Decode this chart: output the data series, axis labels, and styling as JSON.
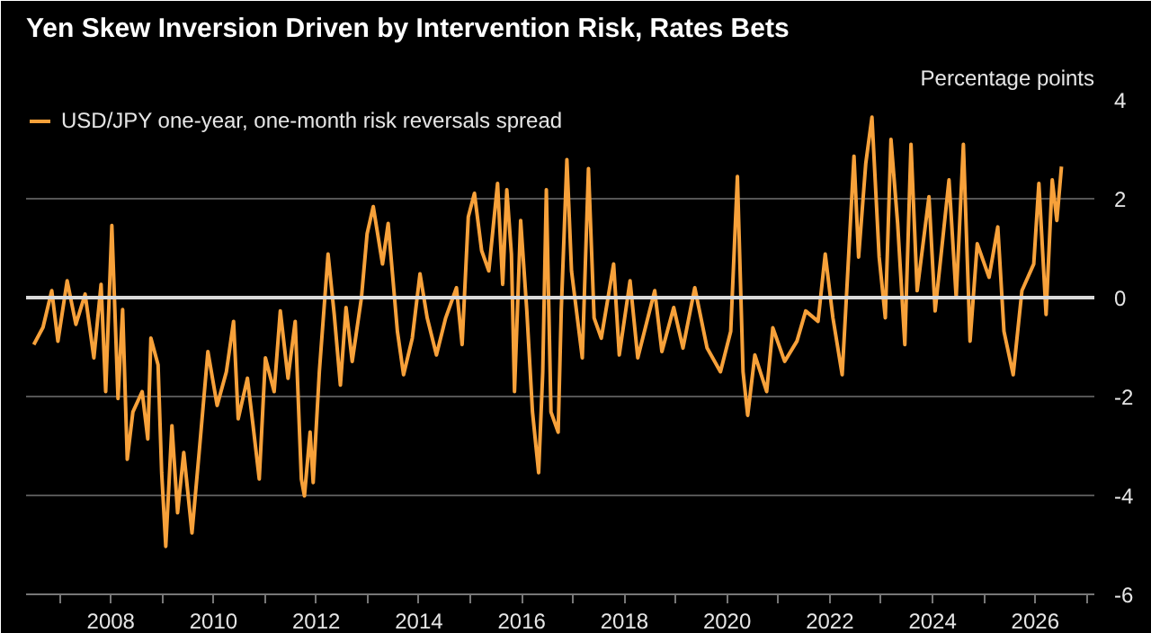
{
  "chart_data": {
    "type": "line",
    "title": "Yen Skew Inversion Driven by Intervention Risk, Rates Bets",
    "ylabel": "Percentage points",
    "x": [
      2006.5,
      2006.68,
      2006.85,
      2006.97,
      2007.15,
      2007.32,
      2007.5,
      2007.67,
      2007.81,
      2007.9,
      2008.02,
      2008.14,
      2008.23,
      2008.32,
      2008.43,
      2008.61,
      2008.72,
      2008.78,
      2008.92,
      2008.99,
      2009.07,
      2009.19,
      2009.3,
      2009.42,
      2009.58,
      2009.72,
      2009.89,
      2010.07,
      2010.25,
      2010.39,
      2010.48,
      2010.66,
      2010.77,
      2010.89,
      2011.01,
      2011.18,
      2011.3,
      2011.45,
      2011.59,
      2011.71,
      2011.77,
      2011.88,
      2011.94,
      2012.06,
      2012.23,
      2012.35,
      2012.47,
      2012.58,
      2012.7,
      2012.88,
      2012.99,
      2013.11,
      2013.29,
      2013.4,
      2013.58,
      2013.7,
      2013.87,
      2014.02,
      2014.16,
      2014.34,
      2014.52,
      2014.73,
      2014.84,
      2014.96,
      2015.08,
      2015.22,
      2015.36,
      2015.53,
      2015.63,
      2015.71,
      2015.8,
      2015.86,
      2015.98,
      2016.1,
      2016.21,
      2016.33,
      2016.41,
      2016.48,
      2016.57,
      2016.71,
      2016.77,
      2016.88,
      2016.97,
      2017.18,
      2017.3,
      2017.41,
      2017.55,
      2017.79,
      2017.9,
      2018.11,
      2018.26,
      2018.59,
      2018.73,
      2018.96,
      2019.14,
      2019.37,
      2019.61,
      2019.87,
      2020.07,
      2020.2,
      2020.31,
      2020.4,
      2020.54,
      2020.77,
      2020.89,
      2021.12,
      2021.36,
      2021.53,
      2021.77,
      2021.91,
      2022.06,
      2022.24,
      2022.35,
      2022.47,
      2022.56,
      2022.7,
      2022.82,
      2022.96,
      2023.08,
      2023.19,
      2023.32,
      2023.46,
      2023.58,
      2023.7,
      2023.93,
      2024.05,
      2024.32,
      2024.46,
      2024.6,
      2024.73,
      2024.87,
      2025.1,
      2025.27,
      2025.39,
      2025.57,
      2025.74,
      2025.97,
      2026.07,
      2026.21,
      2026.33,
      2026.42,
      2026.51
    ],
    "series": [
      {
        "name": "USD/JPY one-year, one-month risk reversals spread",
        "color": "#f7a13a",
        "values": [
          -0.95,
          -0.6,
          0.14,
          -0.88,
          0.34,
          -0.54,
          0.07,
          -1.22,
          0.27,
          -1.9,
          1.46,
          -2.04,
          -0.24,
          -3.27,
          -2.31,
          -1.9,
          -2.86,
          -0.82,
          -1.36,
          -3.54,
          -5.03,
          -2.59,
          -4.35,
          -3.13,
          -4.76,
          -3.13,
          -1.09,
          -2.18,
          -1.5,
          -0.48,
          -2.45,
          -1.63,
          -2.59,
          -3.67,
          -1.22,
          -1.9,
          -0.27,
          -1.63,
          -0.48,
          -3.67,
          -4.01,
          -2.72,
          -3.74,
          -1.5,
          0.88,
          -0.34,
          -1.77,
          -0.2,
          -1.29,
          0,
          1.29,
          1.84,
          0.68,
          1.5,
          -0.68,
          -1.56,
          -0.82,
          0.48,
          -0.41,
          -1.16,
          -0.41,
          0.2,
          -0.95,
          1.63,
          2.11,
          0.95,
          0.54,
          2.31,
          0.27,
          2.18,
          0.88,
          -1.9,
          1.56,
          -0.27,
          -2.31,
          -3.54,
          -1.5,
          2.18,
          -2.31,
          -2.72,
          -0.27,
          2.79,
          0.54,
          -1.22,
          2.61,
          -0.41,
          -0.82,
          0.68,
          -1.16,
          0.34,
          -1.22,
          0.14,
          -1.09,
          -0.2,
          -1.02,
          0.2,
          -1.02,
          -1.5,
          -0.68,
          2.45,
          -1.5,
          -2.38,
          -1.16,
          -1.9,
          -0.61,
          -1.29,
          -0.88,
          -0.27,
          -0.48,
          0.88,
          -0.41,
          -1.56,
          0.54,
          2.86,
          0.82,
          2.72,
          3.65,
          0.82,
          -0.41,
          3.2,
          1.5,
          -0.95,
          3.1,
          0.14,
          2.04,
          -0.27,
          2.38,
          0,
          3.1,
          -0.88,
          1.09,
          0.41,
          1.43,
          -0.68,
          -1.56,
          0.14,
          0.68,
          2.31,
          -0.34,
          2.38,
          1.56,
          2.65
        ]
      }
    ],
    "xlim": [
      2006.35,
      2027.15
    ],
    "xticks": [
      {
        "value": 2007,
        "label": null
      },
      2008,
      {
        "value": 2009,
        "label": null
      },
      2010,
      {
        "value": 2011,
        "label": null
      },
      2012,
      {
        "value": 2013,
        "label": null
      },
      2014,
      {
        "value": 2015,
        "label": null
      },
      2016,
      {
        "value": 2017,
        "label": null
      },
      2018,
      {
        "value": 2019,
        "label": null
      },
      2020,
      {
        "value": 2021,
        "label": null
      },
      2022,
      {
        "value": 2023,
        "label": null
      },
      2024,
      {
        "value": 2025,
        "label": null
      },
      2026,
      {
        "value": 2027,
        "label": null
      }
    ],
    "ylim": [
      -6,
      4
    ],
    "yticks": [
      -6,
      -4,
      -2,
      0,
      2,
      4
    ],
    "grid": "y",
    "legend": "top left",
    "ref_lines": [
      {
        "axis": "y",
        "value": 0,
        "color": "#d9d9d9"
      }
    ]
  }
}
